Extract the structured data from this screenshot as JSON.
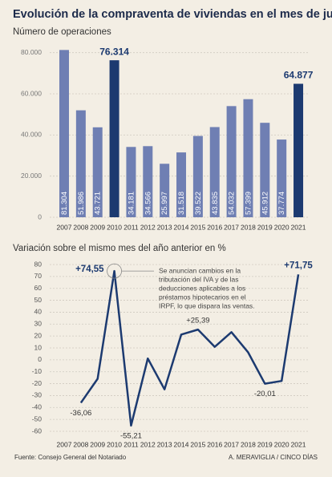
{
  "title": "Evolución de la compraventa de viviendas en el mes de junio",
  "source": "Fuente: Consejo General del Notariado",
  "credit": "A. MERAVIGLIA / CINCO DÍAS",
  "chart_data": [
    {
      "type": "bar",
      "title": "Número de operaciones",
      "categories": [
        "2007",
        "2008",
        "2009",
        "2010",
        "2011",
        "2012",
        "2013",
        "2014",
        "2015",
        "2016",
        "2017",
        "2018",
        "2019",
        "2020",
        "2021"
      ],
      "values": [
        81304,
        51986,
        43721,
        76314,
        34181,
        34566,
        25997,
        31518,
        39522,
        43835,
        54032,
        57399,
        45912,
        37774,
        64877
      ],
      "value_labels": [
        "81.304",
        "51.986",
        "43.721",
        "76.314",
        "34.181",
        "34.566",
        "25.997",
        "31.518",
        "39.522",
        "43.835",
        "54.032",
        "57.399",
        "45.912",
        "37.774",
        "64.877"
      ],
      "colors": [
        "#6f7fb3",
        "#6f7fb3",
        "#6f7fb3",
        "#1c3a70",
        "#6f7fb3",
        "#6f7fb3",
        "#6f7fb3",
        "#6f7fb3",
        "#6f7fb3",
        "#6f7fb3",
        "#6f7fb3",
        "#6f7fb3",
        "#6f7fb3",
        "#6f7fb3",
        "#1c3a70"
      ],
      "highlight_color": "#1c3a70",
      "ylim": [
        0,
        83000
      ],
      "yticks": [
        0,
        {
          "value": 20000,
          "label": "20.000"
        },
        {
          "value": 40000,
          "label": "40.000"
        },
        {
          "value": 60000,
          "label": "60.000"
        },
        {
          "value": 80000,
          "label": "80.000"
        }
      ],
      "grid": true
    },
    {
      "type": "line",
      "title": "Variación sobre el mismo mes del año anterior en %",
      "categories": [
        "2007",
        "2008",
        "2009",
        "2010",
        "2011",
        "2012",
        "2013",
        "2014",
        "2015",
        "2016",
        "2017",
        "2018",
        "2019",
        "2020",
        "2021"
      ],
      "values": [
        null,
        -36.06,
        -15.9,
        74.55,
        -55.21,
        1.13,
        -24.79,
        21.24,
        25.39,
        10.91,
        23.26,
        6.23,
        -20.01,
        -17.73,
        71.75
      ],
      "value_labels": [
        null,
        "-36,06",
        null,
        "+74,55",
        "-55,21",
        null,
        null,
        null,
        "+25,39",
        null,
        null,
        null,
        "-20,01",
        null,
        "+71,75"
      ],
      "color": "#1c3a70",
      "ylim": [
        -60,
        80
      ],
      "yticks": [
        80,
        70,
        60,
        50,
        40,
        30,
        20,
        10,
        0,
        -10,
        -20,
        -30,
        -40,
        -50,
        -60
      ],
      "grid": true,
      "annotation": [
        "Se anuncian cambios en la",
        "tributación del IVA y de las",
        "deducciones aplicables a los",
        "préstamos hipotecarios en el",
        "IRPF, lo que dispara las ventas."
      ]
    }
  ]
}
